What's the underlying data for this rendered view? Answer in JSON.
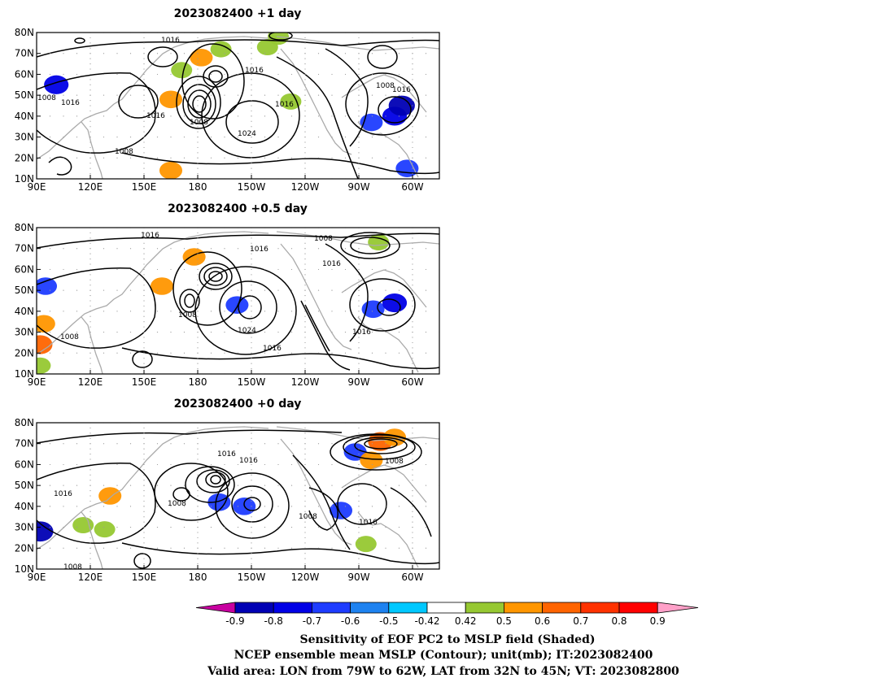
{
  "panels": [
    {
      "title": "2023082400  +1 day",
      "contour_labels": [
        "1016",
        "1016",
        "1008",
        "1016",
        "1016",
        "1008",
        "1024",
        "1016",
        "1008",
        "1008",
        "1016"
      ],
      "shading": [
        {
          "lon": 101,
          "lat": 55,
          "value": -0.7
        },
        {
          "lon": 165,
          "lat": 48,
          "value": 0.6
        },
        {
          "lon": 171,
          "lat": 62,
          "value": 0.5
        },
        {
          "lon": 182,
          "lat": 68,
          "value": 0.6
        },
        {
          "lon": 193,
          "lat": 72,
          "value": 0.5
        },
        {
          "lon": 219,
          "lat": 73,
          "value": 0.5
        },
        {
          "lon": 225,
          "lat": 78,
          "value": 0.5
        },
        {
          "lon": 232,
          "lat": 47,
          "value": 0.5
        },
        {
          "lon": 277,
          "lat": 37,
          "value": -0.6
        },
        {
          "lon": 290,
          "lat": 40,
          "value": -0.7
        },
        {
          "lon": 294,
          "lat": 45,
          "value": -0.8
        },
        {
          "lon": 297,
          "lat": 15,
          "value": -0.6
        },
        {
          "lon": 165,
          "lat": 14,
          "value": 0.6
        }
      ]
    },
    {
      "title": "2023082400  +0.5 day",
      "contour_labels": [
        "1016",
        "1016",
        "1008",
        "1016",
        "1008",
        "1024",
        "1016",
        "1008",
        "1016"
      ],
      "shading": [
        {
          "lon": 92,
          "lat": 24,
          "value": 0.7
        },
        {
          "lon": 94,
          "lat": 34,
          "value": 0.6
        },
        {
          "lon": 92,
          "lat": 14,
          "value": 0.5
        },
        {
          "lon": 160,
          "lat": 52,
          "value": 0.6
        },
        {
          "lon": 178,
          "lat": 66,
          "value": 0.6
        },
        {
          "lon": 202,
          "lat": 43,
          "value": -0.6
        },
        {
          "lon": 278,
          "lat": 41,
          "value": -0.6
        },
        {
          "lon": 290,
          "lat": 44,
          "value": -0.7
        },
        {
          "lon": 281,
          "lat": 73,
          "value": 0.5
        },
        {
          "lon": 95,
          "lat": 52,
          "value": -0.6
        }
      ]
    },
    {
      "title": "2023082400  +0 day",
      "contour_labels": [
        "1016",
        "1016",
        "1016",
        "1008",
        "1008",
        "1016",
        "1008",
        "1008"
      ],
      "shading": [
        {
          "lon": 282,
          "lat": 71,
          "value": 0.7
        },
        {
          "lon": 290,
          "lat": 73,
          "value": 0.6
        },
        {
          "lon": 268,
          "lat": 66,
          "value": -0.6
        },
        {
          "lon": 277,
          "lat": 62,
          "value": 0.6
        },
        {
          "lon": 92,
          "lat": 28,
          "value": -0.8
        },
        {
          "lon": 116,
          "lat": 31,
          "value": 0.5
        },
        {
          "lon": 128,
          "lat": 29,
          "value": 0.5
        },
        {
          "lon": 131,
          "lat": 45,
          "value": 0.6
        },
        {
          "lon": 192,
          "lat": 42,
          "value": -0.6
        },
        {
          "lon": 206,
          "lat": 40,
          "value": -0.6
        },
        {
          "lon": 260,
          "lat": 38,
          "value": -0.6
        },
        {
          "lon": 274,
          "lat": 22,
          "value": 0.5
        }
      ]
    }
  ],
  "axes": {
    "x_ticks": [
      {
        "lon": 90,
        "label": "90E"
      },
      {
        "lon": 120,
        "label": "120E"
      },
      {
        "lon": 150,
        "label": "150E"
      },
      {
        "lon": 180,
        "label": "180"
      },
      {
        "lon": 210,
        "label": "150W"
      },
      {
        "lon": 240,
        "label": "120W"
      },
      {
        "lon": 270,
        "label": "90W"
      },
      {
        "lon": 300,
        "label": "60W"
      }
    ],
    "y_ticks": [
      {
        "lat": 80,
        "label": "80N"
      },
      {
        "lat": 70,
        "label": "70N"
      },
      {
        "lat": 60,
        "label": "60N"
      },
      {
        "lat": 50,
        "label": "50N"
      },
      {
        "lat": 40,
        "label": "40N"
      },
      {
        "lat": 30,
        "label": "30N"
      },
      {
        "lat": 20,
        "label": "20N"
      },
      {
        "lat": 10,
        "label": "10N"
      }
    ],
    "lon_range": [
      90,
      315
    ],
    "lat_range": [
      10,
      80
    ]
  },
  "colorbar": {
    "colors": [
      "#c800a0",
      "#0000b4",
      "#0000e6",
      "#1e3cff",
      "#1e82f0",
      "#00c8ff",
      "#ffffff",
      "#96c832",
      "#ff9600",
      "#ff6400",
      "#ff3200",
      "#ff0000",
      "#ffa0c8"
    ],
    "labels": [
      "-0.9",
      "-0.8",
      "-0.7",
      "-0.6",
      "-0.5",
      "-0.42",
      "0.42",
      "0.5",
      "0.6",
      "0.7",
      "0.8",
      "0.9"
    ]
  },
  "captions": [
    "Sensitivity of EOF PC2 to MSLP field (Shaded)",
    "NCEP ensemble mean MSLP (Contour); unit(mb); IT:2023082400",
    "Valid area: LON from 79W to 62W, LAT from 32N to 45N; VT: 2023082800"
  ]
}
